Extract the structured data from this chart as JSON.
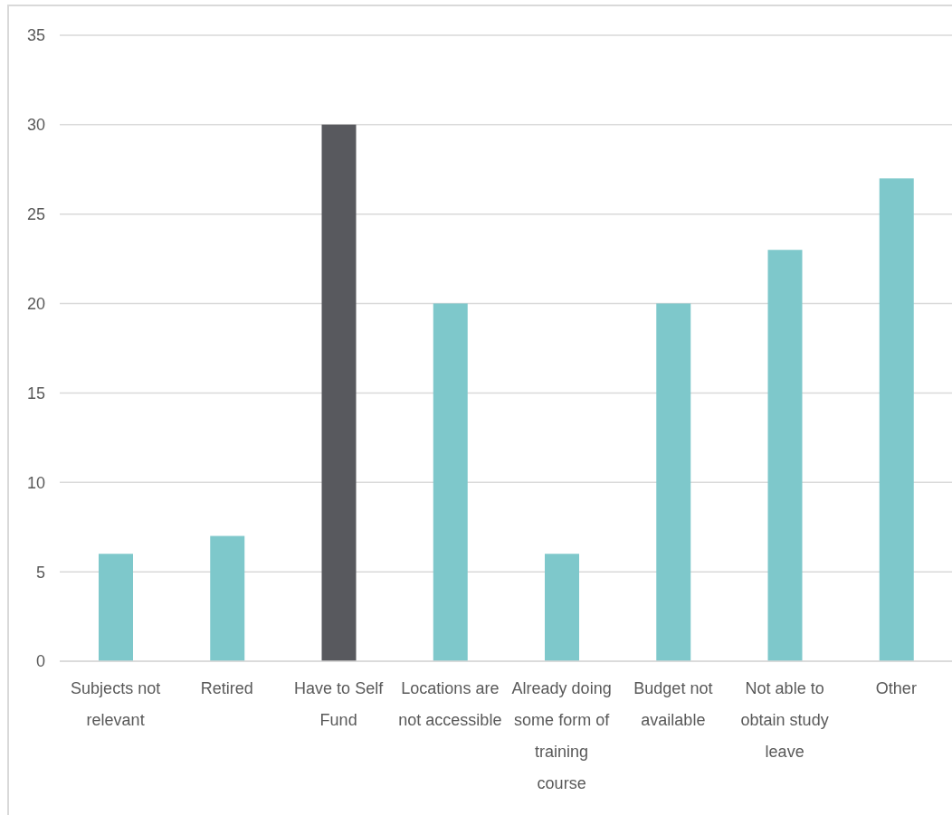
{
  "chart_data": {
    "type": "bar",
    "categories": [
      "Subjects not relevant",
      "Retired",
      "Have to Self Fund",
      "Locations are not accessible",
      "Already doing some form of training course",
      "Budget not available",
      "Not able to obtain study leave",
      "Other"
    ],
    "values": [
      6,
      7,
      30,
      20,
      6,
      20,
      23,
      27
    ],
    "colors": [
      "#7ec8cb",
      "#7ec8cb",
      "#58595e",
      "#7ec8cb",
      "#7ec8cb",
      "#7ec8cb",
      "#7ec8cb",
      "#7ec8cb"
    ],
    "ylim": [
      0,
      35
    ],
    "yticks": [
      0,
      5,
      10,
      15,
      20,
      25,
      30,
      35
    ],
    "grid": "y"
  }
}
